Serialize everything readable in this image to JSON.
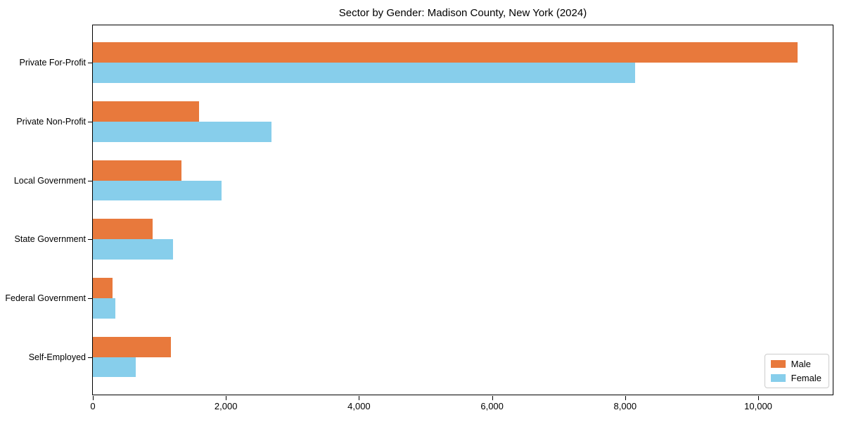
{
  "colors": {
    "background": "#ffffff",
    "axis": "#000000",
    "text": "#000000",
    "legend_border": "#cccccc",
    "male": "#E8793C",
    "female": "#87CEEB"
  },
  "chart_data": {
    "type": "bar",
    "orientation": "horizontal",
    "title": "Sector by Gender: Madison County, New York (2024)",
    "xlabel": "",
    "ylabel": "",
    "grid": false,
    "legend_position": "lower right",
    "bar_width_fraction": 0.35,
    "categories": [
      "Private For-Profit",
      "Private Non-Profit",
      "Local Government",
      "State Government",
      "Federal Government",
      "Self-Employed"
    ],
    "series": [
      {
        "name": "Male",
        "color": "#E8793C",
        "values": [
          10590,
          1600,
          1330,
          900,
          300,
          1170
        ]
      },
      {
        "name": "Female",
        "color": "#87CEEB",
        "values": [
          8150,
          2680,
          1930,
          1200,
          340,
          640
        ]
      }
    ],
    "xlim": [
      0,
      11120
    ],
    "x_ticks": [
      {
        "value": 0,
        "label": "0"
      },
      {
        "value": 2000,
        "label": "2,000"
      },
      {
        "value": 4000,
        "label": "4,000"
      },
      {
        "value": 6000,
        "label": "6,000"
      },
      {
        "value": 8000,
        "label": "8,000"
      },
      {
        "value": 10000,
        "label": "10,000"
      }
    ]
  }
}
